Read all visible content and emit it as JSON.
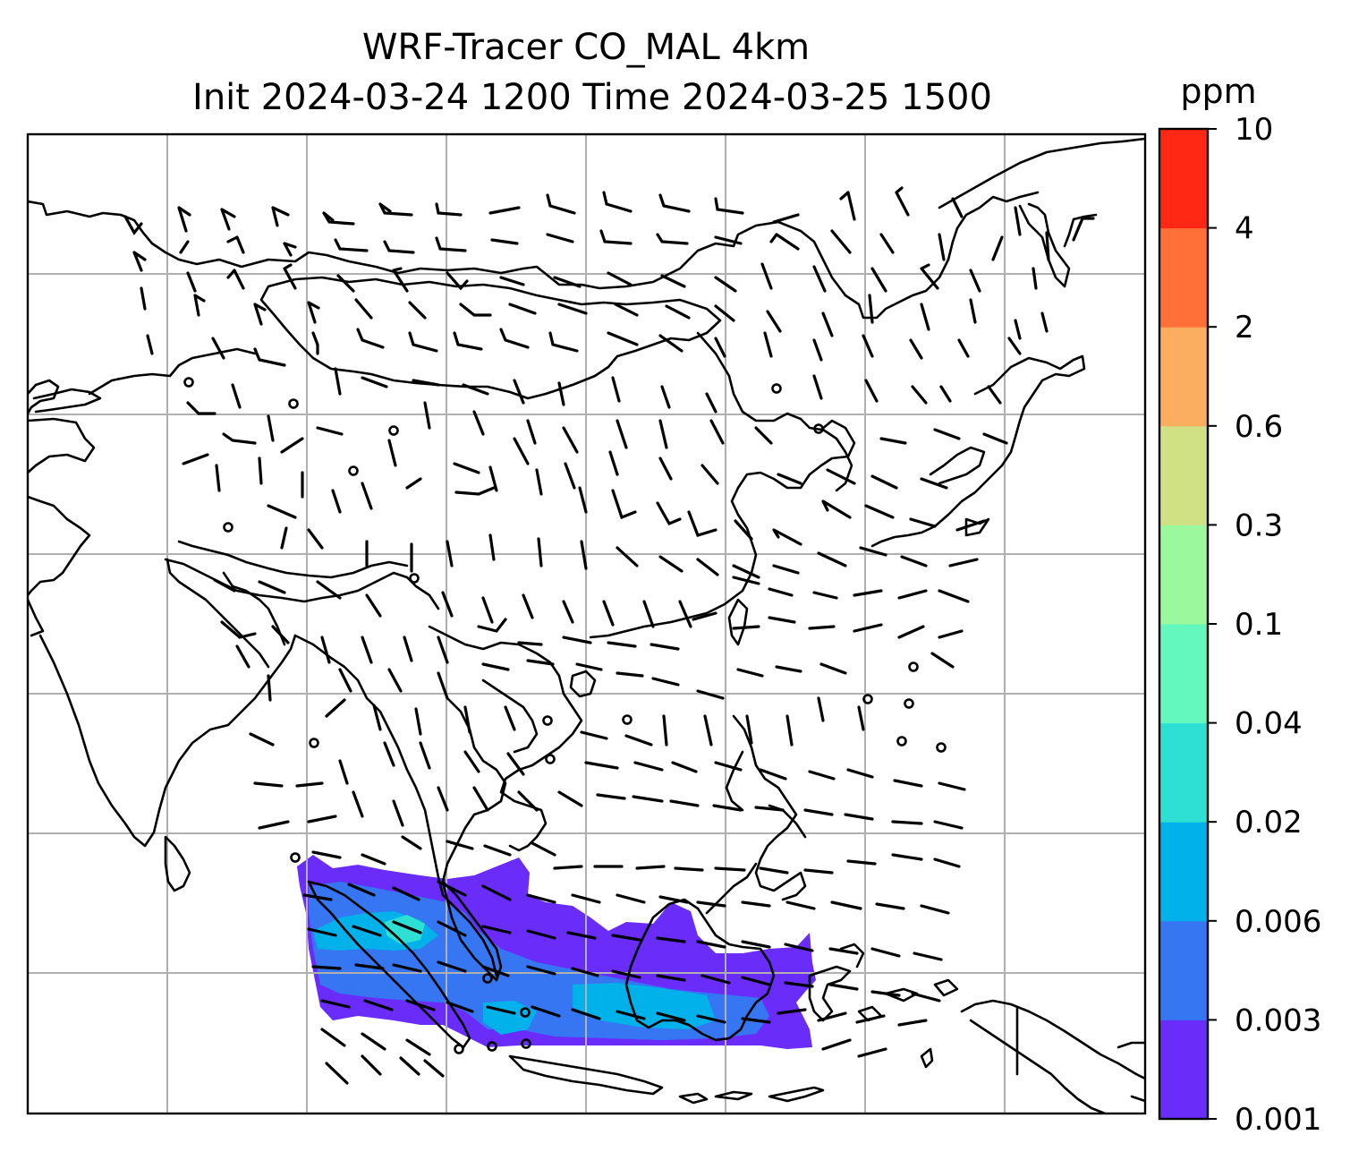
{
  "title": {
    "line1": "WRF-Tracer CO_MAL 4km",
    "line2": "Init 2024-03-24 1200 Time 2024-03-25 1500"
  },
  "colorbar": {
    "unit": "ppm",
    "levels": [
      "0.001",
      "0.003",
      "0.006",
      "0.02",
      "0.04",
      "0.1",
      "0.3",
      "0.6",
      "2",
      "4",
      "10"
    ],
    "colors": [
      "#6a2cf8",
      "#3676f2",
      "#00b1ea",
      "#2ee0d4",
      "#64f7be",
      "#9bf89c",
      "#d0e084",
      "#fcae60",
      "#ff7038",
      "#ff2814"
    ]
  },
  "map": {
    "variable": "CO_MAL tracer",
    "overlay": "wind barbs",
    "coastline_color": "#000000",
    "gridline_color": "#b0b0b0",
    "plume_colors": {
      "outer": "#6a2cf8",
      "mid": "#3676f2",
      "core": "#00b1ea",
      "peak": "#2ee0d4"
    }
  }
}
